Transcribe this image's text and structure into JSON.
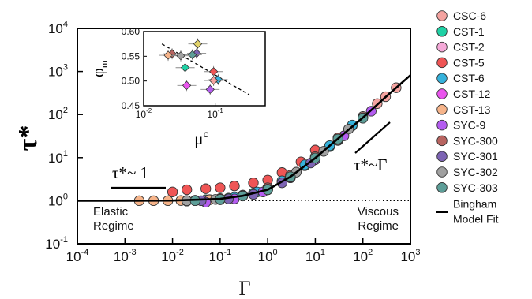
{
  "chart_data": [
    {
      "type": "scatter",
      "xlabel": "Γ",
      "ylabel": "τ*",
      "xscale": "log",
      "yscale": "log",
      "xlim": [
        0.0001,
        1000
      ],
      "ylim": [
        0.1,
        10000
      ],
      "x_ticks": [
        {
          "base": "10",
          "exp": "-4"
        },
        {
          "base": "10",
          "exp": "-3"
        },
        {
          "base": "10",
          "exp": "-2"
        },
        {
          "base": "10",
          "exp": "-1"
        },
        {
          "base": "10",
          "exp": "0"
        },
        {
          "base": "10",
          "exp": "1"
        },
        {
          "base": "10",
          "exp": "2"
        },
        {
          "base": "10",
          "exp": "3"
        }
      ],
      "y_ticks": [
        {
          "base": "10",
          "exp": "-1"
        },
        {
          "base": "10",
          "exp": "0"
        },
        {
          "base": "10",
          "exp": "1"
        },
        {
          "base": "10",
          "exp": "2"
        },
        {
          "base": "10",
          "exp": "3"
        },
        {
          "base": "10",
          "exp": "4"
        }
      ],
      "legend_position": "right",
      "series": [
        {
          "name": "CSC-6",
          "color": "#f4a3a0",
          "x": [
            0.03,
            0.1,
            0.3,
            1,
            3,
            10,
            30,
            100,
            200,
            300,
            500
          ],
          "y": [
            1.01,
            1.1,
            1.3,
            1.8,
            3.5,
            9,
            25,
            90,
            180,
            260,
            420
          ]
        },
        {
          "name": "CST-1",
          "color": "#1fd1a5",
          "x": [
            0.02,
            0.05,
            0.15,
            0.5,
            2,
            6,
            20,
            60
          ],
          "y": [
            1.0,
            1.05,
            1.15,
            1.5,
            2.8,
            6.5,
            18,
            55
          ]
        },
        {
          "name": "CST-2",
          "color": "#f5a9d8",
          "x": [
            0.03,
            0.1,
            0.3,
            1,
            3,
            10,
            30,
            100
          ],
          "y": [
            1.0,
            1.1,
            1.3,
            1.9,
            3.8,
            10,
            28,
            85
          ]
        },
        {
          "name": "CST-5",
          "color": "#ef5555",
          "x": [
            0.01,
            0.02,
            0.05,
            0.1,
            0.2,
            0.5,
            1,
            2,
            5,
            10
          ],
          "y": [
            1.6,
            1.8,
            1.9,
            2.0,
            2.2,
            2.6,
            3.0,
            4.5,
            8,
            15
          ]
        },
        {
          "name": "CST-6",
          "color": "#35b2dc",
          "x": [
            0.02,
            0.06,
            0.2,
            0.6,
            2,
            6,
            20,
            60
          ],
          "y": [
            1.0,
            1.06,
            1.2,
            1.6,
            2.9,
            6.8,
            19,
            57
          ]
        },
        {
          "name": "CST-12",
          "color": "#ea55ee",
          "x": [
            0.02,
            0.05,
            0.1,
            0.3,
            1,
            3,
            10
          ],
          "y": [
            0.98,
            1.0,
            1.05,
            1.3,
            1.8,
            3.4,
            9.5
          ]
        },
        {
          "name": "CST-13",
          "color": "#f6b48a",
          "x": [
            0.002,
            0.004,
            0.008,
            0.015,
            0.03,
            0.06
          ],
          "y": [
            1.0,
            1.0,
            1.0,
            1.01,
            1.02,
            1.05
          ]
        },
        {
          "name": "SYC-9",
          "color": "#b45cf0",
          "x": [
            0.05,
            0.2,
            0.8,
            3,
            10,
            40,
            150
          ],
          "y": [
            0.92,
            1.1,
            1.6,
            3.5,
            9,
            32,
            120
          ]
        },
        {
          "name": "SYC-300",
          "color": "#b86460",
          "x": [
            0.03,
            0.1,
            0.3,
            1,
            3,
            10,
            30
          ],
          "y": [
            1.02,
            1.12,
            1.35,
            2.0,
            3.9,
            10.5,
            29
          ]
        },
        {
          "name": "SYC-301",
          "color": "#7d64b4",
          "x": [
            0.04,
            0.15,
            0.5,
            2,
            8,
            30
          ],
          "y": [
            1.0,
            1.1,
            1.4,
            2.6,
            7.5,
            26
          ]
        },
        {
          "name": "SYC-302",
          "color": "#a1a1a1",
          "x": [
            0.02,
            0.08,
            0.3,
            1,
            4,
            15,
            50
          ],
          "y": [
            1.0,
            1.07,
            1.3,
            1.85,
            4.6,
            14,
            46
          ]
        },
        {
          "name": "SYC-303",
          "color": "#5d9e98",
          "x": [
            0.03,
            0.1,
            0.3,
            1,
            3,
            10,
            30,
            100
          ],
          "y": [
            1.0,
            1.08,
            1.28,
            1.8,
            3.6,
            9.8,
            27,
            82
          ]
        }
      ],
      "fit": {
        "name": "Bingham Model Fit",
        "x": [
          0.0001,
          0.001,
          0.01,
          0.1,
          0.3,
          1,
          3,
          10,
          30,
          100,
          300,
          1000
        ],
        "y": [
          1.0,
          1.0,
          1.01,
          1.1,
          1.3,
          1.8,
          3.6,
          9.8,
          27.5,
          85,
          255,
          820
        ]
      },
      "annotations": {
        "elastic": "Elastic\nRegime",
        "viscous": "Viscous\nRegime",
        "slope_low": "τ*~ 1",
        "slope_high": "τ*~Γ"
      }
    },
    {
      "type": "scatter",
      "xlabel": "μ",
      "xlabel_sup": "c",
      "ylabel": "φ",
      "ylabel_sub": "m",
      "xscale": "log",
      "xlim": [
        0.01,
        0.5
      ],
      "ylim": [
        0.45,
        0.6
      ],
      "x_ticks": [
        {
          "base": "10",
          "exp": "-2"
        },
        {
          "base": "10",
          "exp": "-1"
        }
      ],
      "y_ticks": [
        "0.45",
        "0.50",
        "0.55",
        "0.60"
      ],
      "points": [
        {
          "x": 0.057,
          "y": 0.575,
          "color": "#e2d36a"
        },
        {
          "x": 0.025,
          "y": 0.555,
          "color": "#b86460"
        },
        {
          "x": 0.022,
          "y": 0.552,
          "color": "#f6b48a"
        },
        {
          "x": 0.055,
          "y": 0.556,
          "color": "#7d64b4"
        },
        {
          "x": 0.048,
          "y": 0.553,
          "color": "#5d9e98"
        },
        {
          "x": 0.033,
          "y": 0.551,
          "color": "#a1a1a1"
        },
        {
          "x": 0.038,
          "y": 0.527,
          "color": "#1fd1a5"
        },
        {
          "x": 0.095,
          "y": 0.519,
          "color": "#ef5555"
        },
        {
          "x": 0.11,
          "y": 0.503,
          "color": "#35b2dc"
        },
        {
          "x": 0.095,
          "y": 0.501,
          "color": "#f4a3a0"
        },
        {
          "x": 0.04,
          "y": 0.491,
          "color": "#ea55ee"
        },
        {
          "x": 0.085,
          "y": 0.483,
          "color": "#b45cf0"
        }
      ],
      "fit": {
        "x": [
          0.018,
          0.3
        ],
        "y": [
          0.575,
          0.472
        ]
      }
    }
  ]
}
